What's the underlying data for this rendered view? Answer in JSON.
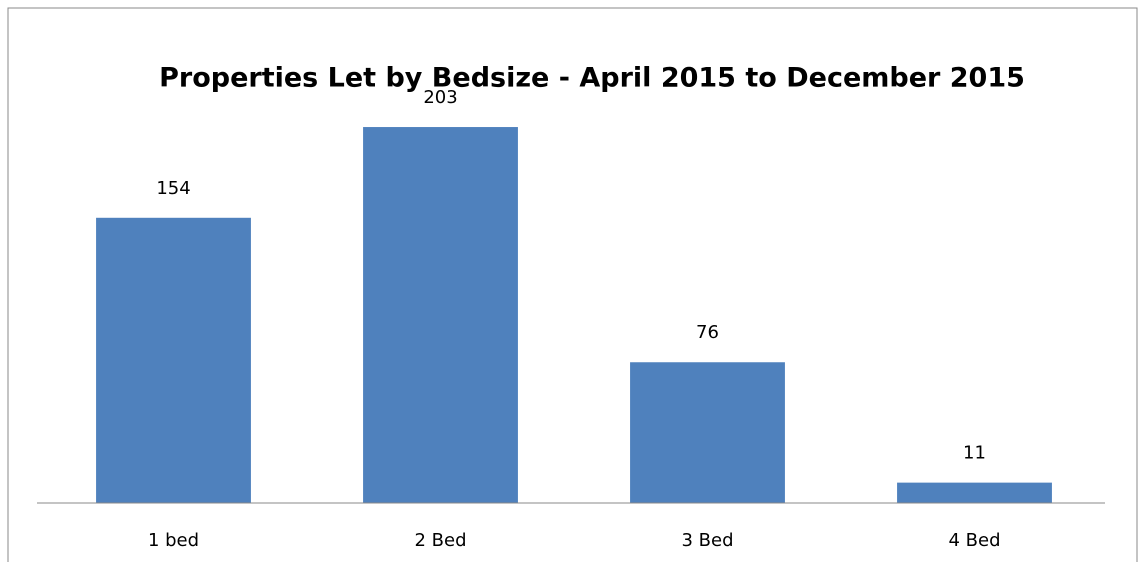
{
  "chart_data": {
    "type": "bar",
    "title": "Properties Let by Bedsize - April 2015 to December 2015",
    "categories": [
      "1 bed",
      "2 Bed",
      "3 Bed",
      "4 Bed"
    ],
    "values": [
      154,
      203,
      76,
      11
    ],
    "color": "#4f81bd",
    "ylim": [
      0,
      250
    ]
  }
}
